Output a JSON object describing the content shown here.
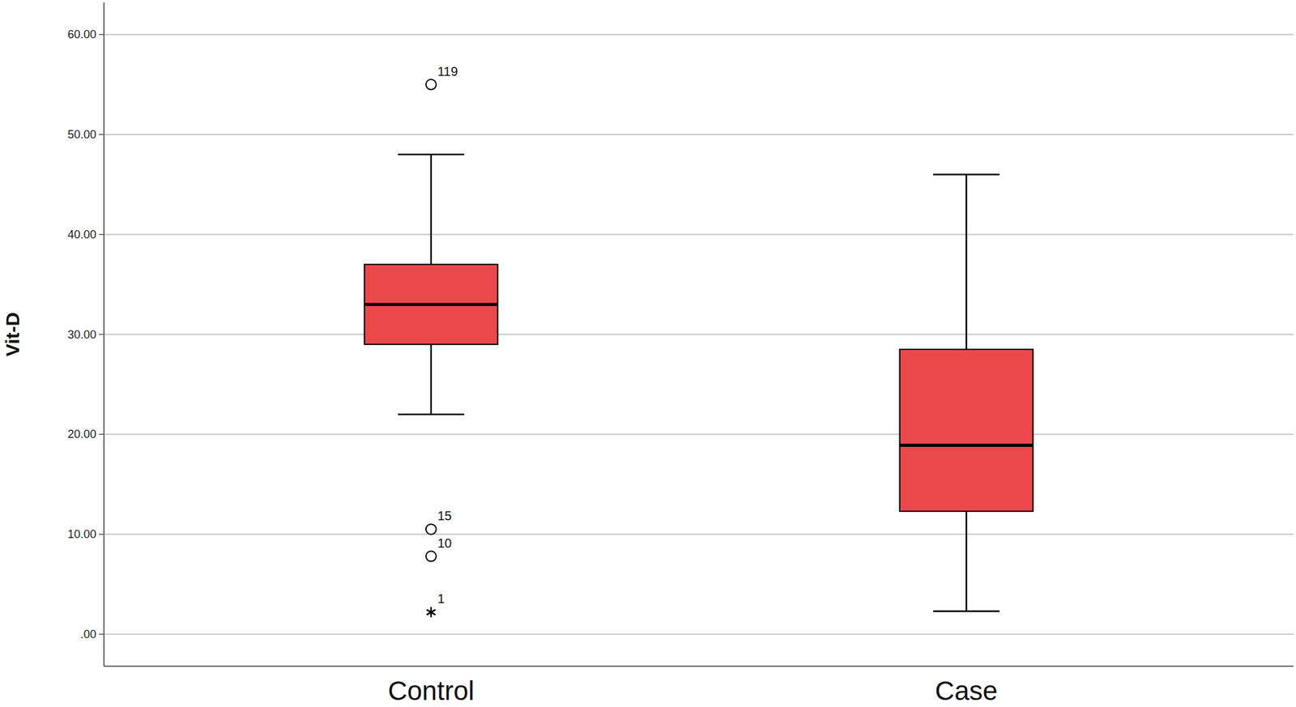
{
  "chart_data": {
    "type": "box",
    "y_label": "Vit-D",
    "categories": [
      "Control",
      "Case"
    ],
    "color": "#e9494b",
    "grid": true,
    "ylim": [
      -3.2,
      63.2
    ],
    "yticks": [
      {
        "value": 0,
        "label": ".00"
      },
      {
        "value": 10,
        "label": "10.00"
      },
      {
        "value": 20,
        "label": "20.00"
      },
      {
        "value": 30,
        "label": "30.00"
      },
      {
        "value": 40,
        "label": "40.00"
      },
      {
        "value": 50,
        "label": "50.00"
      },
      {
        "value": 60,
        "label": "60.00"
      }
    ],
    "boxes": [
      {
        "whisker_low": 22,
        "q1": 29,
        "median": 33,
        "q3": 37,
        "whisker_high": 48,
        "outliers": [
          {
            "value": 55,
            "label": "119",
            "marker": "circle"
          },
          {
            "value": 10.5,
            "label": "15",
            "marker": "circle"
          },
          {
            "value": 7.8,
            "label": "10",
            "marker": "circle"
          },
          {
            "value": 2.2,
            "label": "1",
            "marker": "star"
          }
        ]
      },
      {
        "whisker_low": 2.3,
        "q1": 12.3,
        "median": 18.9,
        "q3": 28.5,
        "whisker_high": 46,
        "outliers": []
      }
    ]
  }
}
